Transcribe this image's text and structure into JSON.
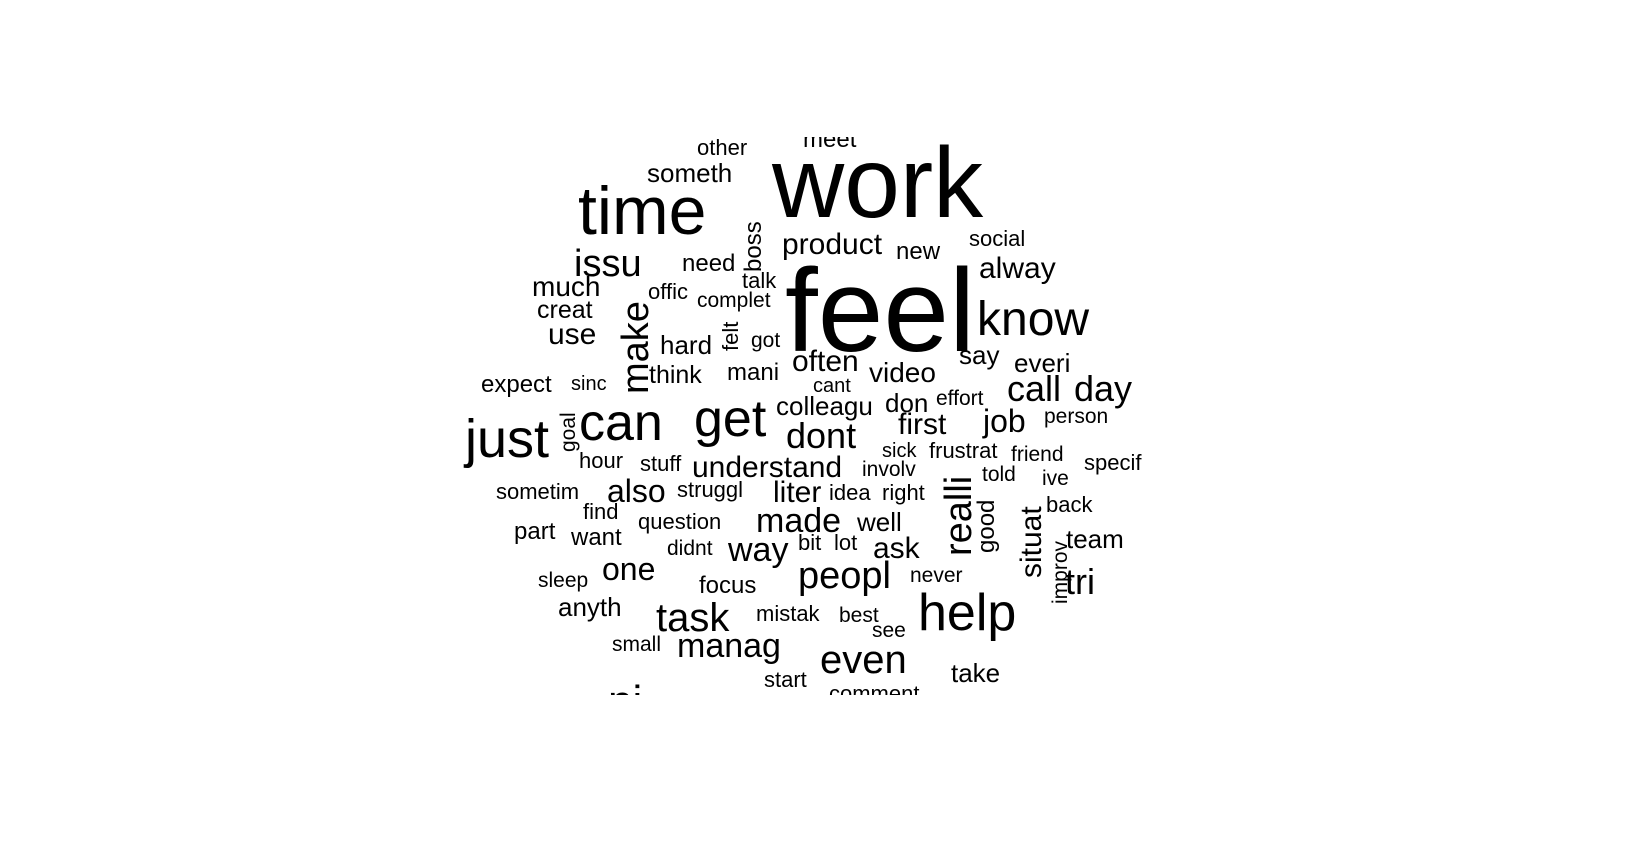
{
  "word_cloud": {
    "text_color": "#000000",
    "background": "#ffffff",
    "words": [
      {
        "text": "meet",
        "weight": 24,
        "vertical": false
      },
      {
        "text": "other",
        "weight": 22,
        "vertical": false
      },
      {
        "text": "someth",
        "weight": 26,
        "vertical": false
      },
      {
        "text": "work",
        "weight": 100,
        "vertical": false
      },
      {
        "text": "time",
        "weight": 68,
        "vertical": false
      },
      {
        "text": "boss",
        "weight": 24,
        "vertical": true
      },
      {
        "text": "issu",
        "weight": 38,
        "vertical": false
      },
      {
        "text": "product",
        "weight": 30,
        "vertical": false
      },
      {
        "text": "new",
        "weight": 24,
        "vertical": false
      },
      {
        "text": "social",
        "weight": 22,
        "vertical": false
      },
      {
        "text": "need",
        "weight": 24,
        "vertical": false
      },
      {
        "text": "alway",
        "weight": 30,
        "vertical": false
      },
      {
        "text": "much",
        "weight": 28,
        "vertical": false
      },
      {
        "text": "talk",
        "weight": 22,
        "vertical": false
      },
      {
        "text": "offic",
        "weight": 22,
        "vertical": false
      },
      {
        "text": "feel",
        "weight": 118,
        "vertical": false
      },
      {
        "text": "complet",
        "weight": 21,
        "vertical": false
      },
      {
        "text": "make",
        "weight": 38,
        "vertical": true
      },
      {
        "text": "creat",
        "weight": 25,
        "vertical": false
      },
      {
        "text": "know",
        "weight": 48,
        "vertical": false
      },
      {
        "text": "felt",
        "weight": 22,
        "vertical": true
      },
      {
        "text": "use",
        "weight": 30,
        "vertical": false
      },
      {
        "text": "got",
        "weight": 21,
        "vertical": false
      },
      {
        "text": "hard",
        "weight": 26,
        "vertical": false
      },
      {
        "text": "say",
        "weight": 26,
        "vertical": false
      },
      {
        "text": "often",
        "weight": 30,
        "vertical": false
      },
      {
        "text": "everi",
        "weight": 26,
        "vertical": false
      },
      {
        "text": "think",
        "weight": 25,
        "vertical": false
      },
      {
        "text": "mani",
        "weight": 24,
        "vertical": false
      },
      {
        "text": "video",
        "weight": 28,
        "vertical": false
      },
      {
        "text": "expect",
        "weight": 24,
        "vertical": false
      },
      {
        "text": "sinc",
        "weight": 20,
        "vertical": false
      },
      {
        "text": "cant",
        "weight": 20,
        "vertical": false
      },
      {
        "text": "call",
        "weight": 36,
        "vertical": false
      },
      {
        "text": "day",
        "weight": 36,
        "vertical": false
      },
      {
        "text": "colleagu",
        "weight": 26,
        "vertical": false
      },
      {
        "text": "don",
        "weight": 26,
        "vertical": false
      },
      {
        "text": "effort",
        "weight": 21,
        "vertical": false
      },
      {
        "text": "can",
        "weight": 52,
        "vertical": false
      },
      {
        "text": "get",
        "weight": 52,
        "vertical": false
      },
      {
        "text": "just",
        "weight": 54,
        "vertical": false
      },
      {
        "text": "goal",
        "weight": 21,
        "vertical": true
      },
      {
        "text": "person",
        "weight": 21,
        "vertical": false
      },
      {
        "text": "job",
        "weight": 32,
        "vertical": false
      },
      {
        "text": "first",
        "weight": 30,
        "vertical": false
      },
      {
        "text": "dont",
        "weight": 36,
        "vertical": false
      },
      {
        "text": "sick",
        "weight": 20,
        "vertical": false
      },
      {
        "text": "frustrat",
        "weight": 22,
        "vertical": false
      },
      {
        "text": "friend",
        "weight": 21,
        "vertical": false
      },
      {
        "text": "hour",
        "weight": 22,
        "vertical": false
      },
      {
        "text": "stuff",
        "weight": 22,
        "vertical": false
      },
      {
        "text": "understand",
        "weight": 30,
        "vertical": false
      },
      {
        "text": "involv",
        "weight": 21,
        "vertical": false
      },
      {
        "text": "specif",
        "weight": 22,
        "vertical": false
      },
      {
        "text": "realli",
        "weight": 38,
        "vertical": true
      },
      {
        "text": "told",
        "weight": 21,
        "vertical": false
      },
      {
        "text": "ive",
        "weight": 21,
        "vertical": false
      },
      {
        "text": "sometim",
        "weight": 22,
        "vertical": false
      },
      {
        "text": "also",
        "weight": 32,
        "vertical": false
      },
      {
        "text": "struggl",
        "weight": 22,
        "vertical": false
      },
      {
        "text": "liter",
        "weight": 30,
        "vertical": false
      },
      {
        "text": "idea",
        "weight": 22,
        "vertical": false
      },
      {
        "text": "right",
        "weight": 22,
        "vertical": false
      },
      {
        "text": "good",
        "weight": 24,
        "vertical": true
      },
      {
        "text": "situat",
        "weight": 30,
        "vertical": true
      },
      {
        "text": "back",
        "weight": 22,
        "vertical": false
      },
      {
        "text": "find",
        "weight": 22,
        "vertical": false
      },
      {
        "text": "question",
        "weight": 22,
        "vertical": false
      },
      {
        "text": "made",
        "weight": 34,
        "vertical": false
      },
      {
        "text": "well",
        "weight": 26,
        "vertical": false
      },
      {
        "text": "part",
        "weight": 24,
        "vertical": false
      },
      {
        "text": "want",
        "weight": 24,
        "vertical": false
      },
      {
        "text": "team",
        "weight": 26,
        "vertical": false
      },
      {
        "text": "didnt",
        "weight": 21,
        "vertical": false
      },
      {
        "text": "way",
        "weight": 34,
        "vertical": false
      },
      {
        "text": "bit",
        "weight": 22,
        "vertical": false
      },
      {
        "text": "lot",
        "weight": 22,
        "vertical": false
      },
      {
        "text": "ask",
        "weight": 30,
        "vertical": false
      },
      {
        "text": "improv",
        "weight": 21,
        "vertical": true
      },
      {
        "text": "one",
        "weight": 32,
        "vertical": false
      },
      {
        "text": "peopl",
        "weight": 38,
        "vertical": false
      },
      {
        "text": "never",
        "weight": 21,
        "vertical": false
      },
      {
        "text": "sleep",
        "weight": 21,
        "vertical": false
      },
      {
        "text": "tri",
        "weight": 36,
        "vertical": false
      },
      {
        "text": "focus",
        "weight": 24,
        "vertical": false
      },
      {
        "text": "help",
        "weight": 52,
        "vertical": false
      },
      {
        "text": "anyth",
        "weight": 26,
        "vertical": false
      },
      {
        "text": "task",
        "weight": 40,
        "vertical": false
      },
      {
        "text": "mistak",
        "weight": 22,
        "vertical": false
      },
      {
        "text": "best",
        "weight": 21,
        "vertical": false
      },
      {
        "text": "see",
        "weight": 21,
        "vertical": false
      },
      {
        "text": "small",
        "weight": 21,
        "vertical": false
      },
      {
        "text": "manag",
        "weight": 34,
        "vertical": false
      },
      {
        "text": "even",
        "weight": 40,
        "vertical": false
      },
      {
        "text": "take",
        "weight": 26,
        "vertical": false
      },
      {
        "text": "start",
        "weight": 22,
        "vertical": false
      },
      {
        "text": "comment",
        "weight": 22,
        "vertical": false
      },
      {
        "text": "ni",
        "weight": 44,
        "vertical": false
      }
    ]
  }
}
